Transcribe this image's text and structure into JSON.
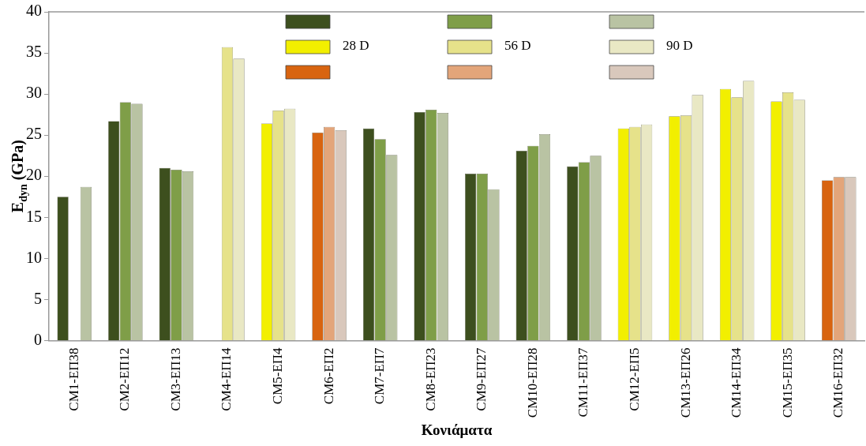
{
  "chart_data": {
    "type": "bar",
    "xlabel": "Κονιάματα",
    "ylabel": "E$_{dyn}$ (GPa)",
    "categories": [
      "CM1-ΕΠ38",
      "CM2-ΕΠ12",
      "CM3-ΕΠ13",
      "CM4-ΕΠ14",
      "CM5-ΕΠ4",
      "CM6-ΕΠ2",
      "CM7-ΕΠ7",
      "CM8-ΕΠ23",
      "CM9-ΕΠ27",
      "CM10-ΕΠ28",
      "CM11-ΕΠ37",
      "CM12-ΕΠ5",
      "CM13-ΕΠ26",
      "CM14-ΕΠ34",
      "CM15-ΕΠ35",
      "CM16-ΕΠ32"
    ],
    "series": [
      {
        "name": "28 D",
        "values": [
          17.5,
          26.7,
          21.0,
          null,
          26.4,
          25.3,
          25.8,
          27.8,
          20.3,
          23.1,
          21.2,
          25.8,
          27.3,
          30.6,
          29.1,
          19.5
        ],
        "colors": [
          "#3d4f1e",
          "#3d4f1e",
          "#3d4f1e",
          "#f2ef00",
          "#f2ef00",
          "#d86410",
          "#3d4f1e",
          "#3d4f1e",
          "#3d4f1e",
          "#3d4f1e",
          "#3d4f1e",
          "#f2ef00",
          "#f2ef00",
          "#f2ef00",
          "#f2ef00",
          "#d86410"
        ]
      },
      {
        "name": "56 D",
        "values": [
          null,
          29.0,
          20.8,
          35.7,
          28.0,
          26.0,
          24.5,
          28.1,
          20.3,
          23.7,
          21.7,
          26.0,
          27.4,
          29.6,
          30.2,
          19.9
        ],
        "colors": [
          "#7f9e48",
          "#7f9e48",
          "#7f9e48",
          "#e6e28a",
          "#e6e28a",
          "#e3a57a",
          "#7f9e48",
          "#7f9e48",
          "#7f9e48",
          "#7f9e48",
          "#7f9e48",
          "#e6e28a",
          "#e6e28a",
          "#e6e28a",
          "#e6e28a",
          "#e3a57a"
        ]
      },
      {
        "name": "90 D",
        "values": [
          18.7,
          28.8,
          20.6,
          34.3,
          28.2,
          25.6,
          22.6,
          27.7,
          18.4,
          25.1,
          22.5,
          26.3,
          29.9,
          31.6,
          29.3,
          19.9
        ],
        "colors": [
          "#b9c3a3",
          "#b9c3a3",
          "#b9c3a3",
          "#e9e8c4",
          "#e9e8c4",
          "#d9c8bc",
          "#b9c3a3",
          "#b9c3a3",
          "#b9c3a3",
          "#b9c3a3",
          "#b9c3a3",
          "#e9e8c4",
          "#e9e8c4",
          "#e9e8c4",
          "#e9e8c4",
          "#d9c8bc"
        ]
      }
    ],
    "ylim": [
      0,
      40
    ],
    "yticks": [
      0,
      5,
      10,
      15,
      20,
      25,
      30,
      35,
      40
    ],
    "grid": false,
    "legend": "top"
  }
}
